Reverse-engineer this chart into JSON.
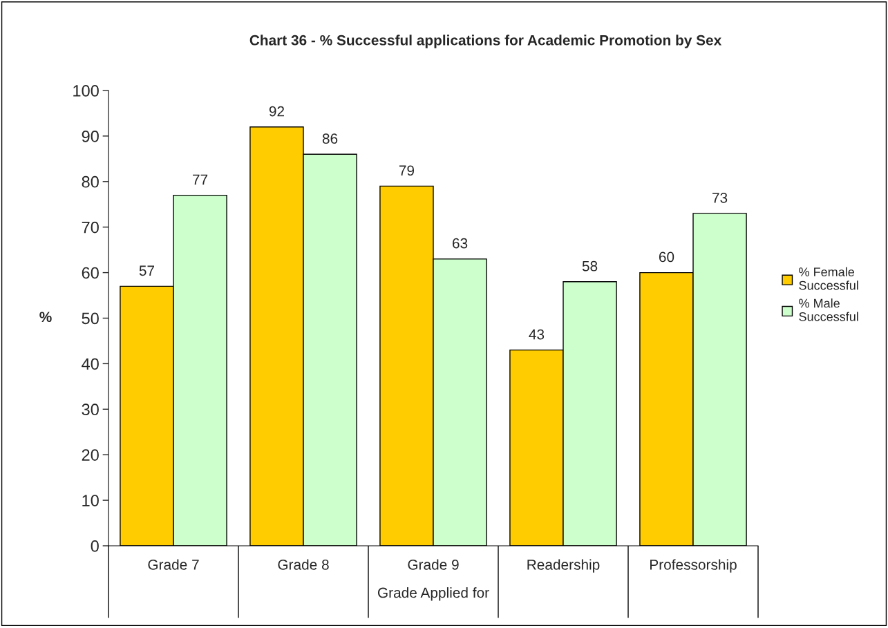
{
  "chart_data": {
    "type": "bar",
    "title": "Chart 36 - % Successful applications for Academic Promotion by Sex",
    "categories": [
      "Grade 7",
      "Grade 8",
      "Grade 9",
      "Readership",
      "Professorship"
    ],
    "series": [
      {
        "name": "% Female Successful",
        "color": "#ffcc00",
        "values": [
          57,
          92,
          79,
          43,
          60
        ]
      },
      {
        "name": "% Male Successful",
        "color": "#ccffcc",
        "values": [
          77,
          86,
          63,
          58,
          73
        ]
      }
    ],
    "xlabel": "Grade Applied for",
    "ylabel": "%",
    "ylim": [
      0,
      100
    ],
    "yticks": [
      0,
      10,
      20,
      30,
      40,
      50,
      60,
      70,
      80,
      90,
      100
    ],
    "grid": false,
    "legend": "right",
    "data_labels": true
  }
}
